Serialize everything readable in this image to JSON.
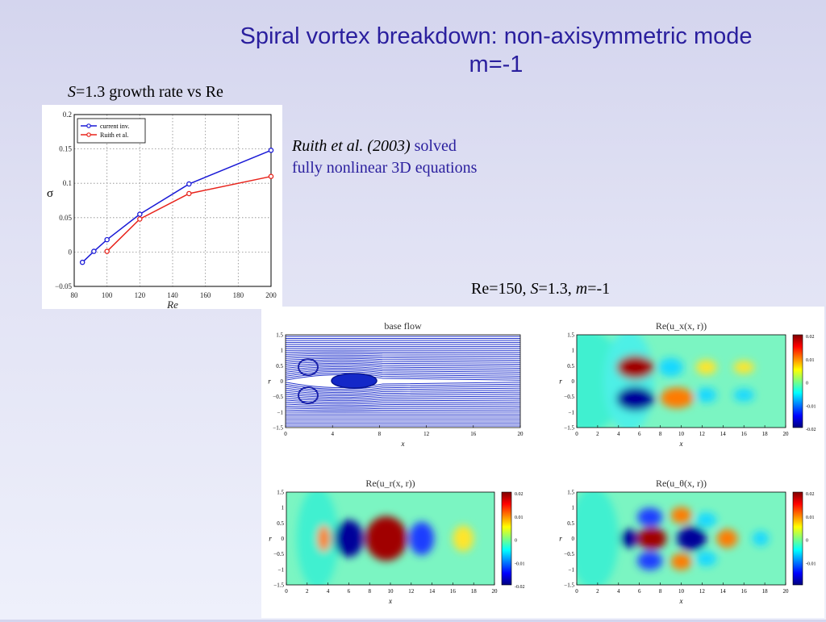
{
  "slide": {
    "title_line1": "Spiral vortex breakdown: non-axisymmetric mode",
    "title_line2": "m=-1",
    "chart_caption_s": "S",
    "chart_caption_rest": "=1.3 growth rate vs Re",
    "note_ref": "Ruith et al. (2003)",
    "note_line1_rest": " solved",
    "note_line2": "fully nonlinear 3D equations",
    "fig_caption_a": "Re=150, ",
    "fig_caption_s": "S",
    "fig_caption_b": "=1.3, ",
    "fig_caption_m": "m",
    "fig_caption_c": "=-1",
    "colors": {
      "title": "#2a1f9e",
      "series_blue": "#1a1ad6",
      "series_red": "#e8231b"
    }
  },
  "chart_data": [
    {
      "type": "line",
      "title": "",
      "xlabel": "Re",
      "ylabel": "σ",
      "xlim": [
        80,
        200
      ],
      "ylim": [
        -0.05,
        0.2
      ],
      "xticks": [
        "80",
        "100",
        "120",
        "140",
        "160",
        "180",
        "200"
      ],
      "yticks": [
        "−0.05",
        "0",
        "0.05",
        "0.1",
        "0.15",
        "0.2"
      ],
      "grid": true,
      "legend": "top-left",
      "series": [
        {
          "name": "current inv.",
          "color": "#1a1ad6",
          "x": [
            85,
            92,
            100,
            120,
            150,
            200
          ],
          "y": [
            -0.015,
            0.001,
            0.018,
            0.055,
            0.099,
            0.148
          ]
        },
        {
          "name": "Ruith et al.",
          "color": "#e8231b",
          "x": [
            100,
            120,
            150,
            200
          ],
          "y": [
            0.001,
            0.048,
            0.085,
            0.11
          ]
        }
      ]
    },
    {
      "type": "heatmap",
      "title": "base flow",
      "xlabel": "x",
      "ylabel": "r",
      "xticks": [
        "0",
        "4",
        "8",
        "12",
        "16",
        "20"
      ],
      "yticks": [
        "1.5",
        "1",
        "0.5",
        "0",
        "−0.5",
        "−1",
        "−1.5"
      ]
    },
    {
      "type": "heatmap",
      "title": "Re(u_x(x, r))",
      "xlabel": "x",
      "ylabel": "r",
      "xticks": [
        "0",
        "2",
        "4",
        "6",
        "8",
        "10",
        "12",
        "14",
        "16",
        "18",
        "20"
      ],
      "yticks": [
        "1.5",
        "1",
        "0.5",
        "0",
        "−0.5",
        "−1",
        "−1.5"
      ],
      "colorbar": [
        "0.02",
        "0.01",
        "0",
        "-0.01",
        "-0.02"
      ]
    },
    {
      "type": "heatmap",
      "title": "Re(u_r(x, r))",
      "xlabel": "x",
      "ylabel": "r",
      "xticks": [
        "0",
        "2",
        "4",
        "6",
        "8",
        "10",
        "12",
        "14",
        "16",
        "18",
        "20"
      ],
      "yticks": [
        "1.5",
        "1",
        "0.5",
        "0",
        "−0.5",
        "−1",
        "−1.5"
      ],
      "colorbar": [
        "0.02",
        "0.01",
        "0",
        "-0.01",
        "-0.02"
      ]
    },
    {
      "type": "heatmap",
      "title": "Re(u_θ(x, r))",
      "xlabel": "x",
      "ylabel": "r",
      "xticks": [
        "0",
        "2",
        "4",
        "6",
        "8",
        "10",
        "12",
        "14",
        "16",
        "18",
        "20"
      ],
      "yticks": [
        "1.5",
        "1",
        "0.5",
        "0",
        "−0.5",
        "−1",
        "−1.5"
      ],
      "colorbar": [
        "0.02",
        "0.01",
        "0",
        "-0.01"
      ]
    }
  ]
}
